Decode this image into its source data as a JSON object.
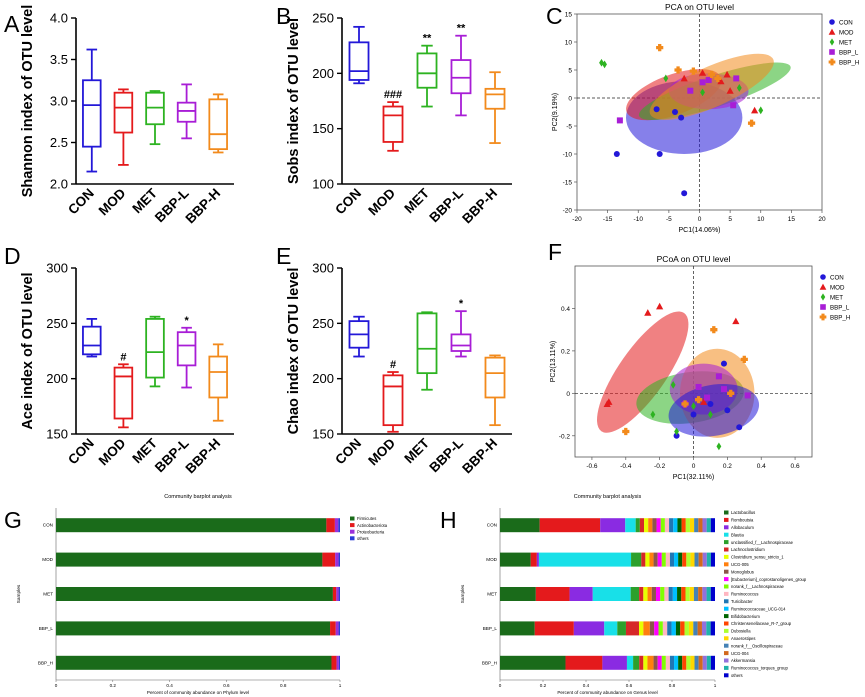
{
  "panel_labels": [
    "A",
    "B",
    "C",
    "D",
    "E",
    "F",
    "G",
    "H"
  ],
  "group_colors": {
    "CON": "#2318d8",
    "MOD": "#e41a1c",
    "MET": "#2db321",
    "BBP-L": "#a81dd6",
    "BBP-H": "#f28a1c"
  },
  "chart_data": [
    {
      "id": "A",
      "type": "box",
      "ylabel": "Shannon index of OTU level",
      "ylim": [
        2.0,
        4.0
      ],
      "yticks": [
        2.0,
        2.5,
        3.0,
        3.5,
        4.0
      ],
      "tick_fmt": 1,
      "categories": [
        "CON",
        "MOD",
        "MET",
        "BBP-L",
        "BBP-H"
      ],
      "boxes": [
        {
          "min": 2.15,
          "q1": 2.45,
          "median": 2.95,
          "q3": 3.25,
          "max": 3.62,
          "sig": ""
        },
        {
          "min": 2.23,
          "q1": 2.62,
          "median": 2.92,
          "q3": 3.1,
          "max": 3.14,
          "sig": ""
        },
        {
          "min": 2.48,
          "q1": 2.72,
          "median": 2.92,
          "q3": 3.1,
          "max": 3.12,
          "sig": ""
        },
        {
          "min": 2.55,
          "q1": 2.75,
          "median": 2.88,
          "q3": 2.98,
          "max": 3.2,
          "sig": ""
        },
        {
          "min": 2.38,
          "q1": 2.42,
          "median": 2.6,
          "q3": 3.02,
          "max": 3.08,
          "sig": ""
        }
      ]
    },
    {
      "id": "B",
      "type": "box",
      "ylabel": "Sobs index of OTU level",
      "ylim": [
        100,
        250
      ],
      "yticks": [
        100,
        150,
        200,
        250
      ],
      "tick_fmt": 0,
      "categories": [
        "CON",
        "MOD",
        "MET",
        "BBP-L",
        "BBP-H"
      ],
      "boxes": [
        {
          "min": 191,
          "q1": 194,
          "median": 202,
          "q3": 228,
          "max": 242,
          "sig": ""
        },
        {
          "min": 130,
          "q1": 138,
          "median": 162,
          "q3": 170,
          "max": 174,
          "sig": "###"
        },
        {
          "min": 170,
          "q1": 187,
          "median": 200,
          "q3": 218,
          "max": 225,
          "sig": "**"
        },
        {
          "min": 162,
          "q1": 182,
          "median": 196,
          "q3": 212,
          "max": 234,
          "sig": "**"
        },
        {
          "min": 137,
          "q1": 168,
          "median": 181,
          "q3": 186,
          "max": 201,
          "sig": ""
        }
      ]
    },
    {
      "id": "D",
      "type": "box",
      "ylabel": "Ace index of OTU level",
      "ylim": [
        150,
        300
      ],
      "yticks": [
        150,
        200,
        250,
        300
      ],
      "tick_fmt": 0,
      "categories": [
        "CON",
        "MOD",
        "MET",
        "BBP-L",
        "BBP-H"
      ],
      "boxes": [
        {
          "min": 220,
          "q1": 222,
          "median": 230,
          "q3": 247,
          "max": 254,
          "sig": ""
        },
        {
          "min": 156,
          "q1": 164,
          "median": 202,
          "q3": 210,
          "max": 213,
          "sig": "#"
        },
        {
          "min": 193,
          "q1": 201,
          "median": 224,
          "q3": 254,
          "max": 256,
          "sig": ""
        },
        {
          "min": 192,
          "q1": 212,
          "median": 230,
          "q3": 242,
          "max": 246,
          "sig": "*"
        },
        {
          "min": 162,
          "q1": 183,
          "median": 206,
          "q3": 220,
          "max": 231,
          "sig": ""
        }
      ]
    },
    {
      "id": "E",
      "type": "box",
      "ylabel": "Chao index of OTU level",
      "ylim": [
        150,
        300
      ],
      "yticks": [
        150,
        200,
        250,
        300
      ],
      "tick_fmt": 0,
      "categories": [
        "CON",
        "MOD",
        "MET",
        "BBP-L",
        "BBP-H"
      ],
      "boxes": [
        {
          "min": 220,
          "q1": 228,
          "median": 240,
          "q3": 252,
          "max": 256,
          "sig": ""
        },
        {
          "min": 152,
          "q1": 158,
          "median": 193,
          "q3": 203,
          "max": 206,
          "sig": "#"
        },
        {
          "min": 190,
          "q1": 205,
          "median": 227,
          "q3": 259,
          "max": 260,
          "sig": ""
        },
        {
          "min": 220,
          "q1": 225,
          "median": 230,
          "q3": 240,
          "max": 261,
          "sig": "*"
        },
        {
          "min": 158,
          "q1": 183,
          "median": 205,
          "q3": 219,
          "max": 221,
          "sig": ""
        }
      ]
    },
    {
      "id": "C",
      "type": "scatter",
      "title": "PCA on OTU level",
      "xlabel": "PC1(14.06%)",
      "ylabel": "PC2(9.19%)",
      "xlim": [
        -20,
        20
      ],
      "ylim": [
        -20,
        15
      ],
      "xticks": [
        -20,
        -15,
        -10,
        -5,
        0,
        5,
        10,
        15,
        20
      ],
      "yticks": [
        -20,
        -15,
        -10,
        -5,
        0,
        5,
        10,
        15
      ],
      "legend": [
        "CON",
        "MOD",
        "MET",
        "BBP_L",
        "BBP_H"
      ],
      "ellipses": [
        {
          "group": "CON",
          "cx": -2.5,
          "cy": -3.5,
          "rx": 9.5,
          "ry": 6.5,
          "angle": 0
        },
        {
          "group": "MOD",
          "cx": -4.2,
          "cy": 0.6,
          "rx": 8.2,
          "ry": 3.6,
          "angle": -20
        },
        {
          "group": "MET",
          "cx": 2.5,
          "cy": 1.2,
          "rx": 13,
          "ry": 2.8,
          "angle": -18
        },
        {
          "group": "BBP_L",
          "cx": 1.5,
          "cy": 1.2,
          "rx": 6.5,
          "ry": 3.2,
          "angle": 0
        },
        {
          "group": "BBP_H",
          "cx": 2.0,
          "cy": 2.0,
          "rx": 11,
          "ry": 3.6,
          "angle": -24
        }
      ],
      "points": [
        {
          "group": "CON",
          "x": -13.5,
          "y": -10
        },
        {
          "group": "CON",
          "x": -6.5,
          "y": -10
        },
        {
          "group": "CON",
          "x": -2.5,
          "y": -17
        },
        {
          "group": "CON",
          "x": -4,
          "y": -2.5
        },
        {
          "group": "CON",
          "x": -7,
          "y": -2
        },
        {
          "group": "CON",
          "x": -3,
          "y": -3.5
        },
        {
          "group": "MOD",
          "x": -2.5,
          "y": 3.5
        },
        {
          "group": "MOD",
          "x": 0.5,
          "y": 4.5
        },
        {
          "group": "MOD",
          "x": 3.5,
          "y": 3
        },
        {
          "group": "MOD",
          "x": 4.5,
          "y": 4.2
        },
        {
          "group": "MOD",
          "x": 9,
          "y": -2.2
        },
        {
          "group": "MOD",
          "x": 5,
          "y": 1.3
        },
        {
          "group": "MET",
          "x": -15.5,
          "y": 6
        },
        {
          "group": "MET",
          "x": -16,
          "y": 6.3
        },
        {
          "group": "MET",
          "x": -5.5,
          "y": 3.5
        },
        {
          "group": "MET",
          "x": 0.5,
          "y": 1
        },
        {
          "group": "MET",
          "x": 6.5,
          "y": 1.8
        },
        {
          "group": "MET",
          "x": 10,
          "y": -2.2
        },
        {
          "group": "BBP_L",
          "x": -13,
          "y": -4
        },
        {
          "group": "BBP_L",
          "x": -1.5,
          "y": 1.3
        },
        {
          "group": "BBP_L",
          "x": 0.5,
          "y": 2.8
        },
        {
          "group": "BBP_L",
          "x": 6,
          "y": 3.5
        },
        {
          "group": "BBP_L",
          "x": 5.5,
          "y": -1.3
        },
        {
          "group": "BBP_L",
          "x": 1.5,
          "y": 3.2
        },
        {
          "group": "BBP_H",
          "x": -6.5,
          "y": 9
        },
        {
          "group": "BBP_H",
          "x": -1,
          "y": 4.8
        },
        {
          "group": "BBP_H",
          "x": 3,
          "y": 3.5
        },
        {
          "group": "BBP_H",
          "x": 8.5,
          "y": -4.5
        },
        {
          "group": "BBP_H",
          "x": 2,
          "y": 4.2
        },
        {
          "group": "BBP_H",
          "x": -3.5,
          "y": 5
        }
      ]
    },
    {
      "id": "F",
      "type": "scatter",
      "title": "PCoA on OTU level",
      "xlabel": "PC1(32.11%)",
      "ylabel": "PC2(13.11%)",
      "xlim": [
        -0.7,
        0.7
      ],
      "ylim": [
        -0.3,
        0.6
      ],
      "xticks": [
        -0.6,
        -0.4,
        -0.2,
        0,
        0.2,
        0.4,
        0.6
      ],
      "yticks": [
        -0.2,
        0,
        0.2,
        0.4
      ],
      "legend": [
        "CON",
        "MOD",
        "MET",
        "BBP_L",
        "BBP_H"
      ],
      "ellipses": [
        {
          "group": "MOD",
          "cx": -0.3,
          "cy": 0.1,
          "rx": 0.14,
          "ry": 0.34,
          "angle": 35
        },
        {
          "group": "MET",
          "cx": -0.02,
          "cy": -0.02,
          "rx": 0.32,
          "ry": 0.12,
          "angle": -8
        },
        {
          "group": "BBP_H",
          "cx": 0.14,
          "cy": 0.0,
          "rx": 0.22,
          "ry": 0.21,
          "angle": 0
        },
        {
          "group": "BBP_L",
          "cx": 0.06,
          "cy": 0.02,
          "rx": 0.2,
          "ry": 0.12,
          "angle": 0
        },
        {
          "group": "CON",
          "cx": 0.12,
          "cy": -0.08,
          "rx": 0.27,
          "ry": 0.12,
          "angle": -10
        }
      ],
      "points": [
        {
          "group": "CON",
          "x": 0.1,
          "y": -0.05
        },
        {
          "group": "CON",
          "x": 0.2,
          "y": -0.08
        },
        {
          "group": "CON",
          "x": 0.27,
          "y": -0.16
        },
        {
          "group": "CON",
          "x": -0.1,
          "y": -0.2
        },
        {
          "group": "CON",
          "x": 0.0,
          "y": -0.1
        },
        {
          "group": "CON",
          "x": 0.18,
          "y": 0.14
        },
        {
          "group": "MOD",
          "x": -0.2,
          "y": 0.41
        },
        {
          "group": "MOD",
          "x": -0.27,
          "y": 0.38
        },
        {
          "group": "MOD",
          "x": -0.5,
          "y": -0.04
        },
        {
          "group": "MOD",
          "x": -0.51,
          "y": -0.05
        },
        {
          "group": "MOD",
          "x": 0.25,
          "y": 0.34
        },
        {
          "group": "MOD",
          "x": 0.06,
          "y": -0.04
        },
        {
          "group": "MET",
          "x": -0.24,
          "y": -0.1
        },
        {
          "group": "MET",
          "x": -0.1,
          "y": -0.18
        },
        {
          "group": "MET",
          "x": -0.12,
          "y": 0.04
        },
        {
          "group": "MET",
          "x": 0.0,
          "y": -0.06
        },
        {
          "group": "MET",
          "x": 0.1,
          "y": -0.1
        },
        {
          "group": "MET",
          "x": 0.15,
          "y": -0.25
        },
        {
          "group": "BBP_L",
          "x": -0.05,
          "y": -0.05
        },
        {
          "group": "BBP_L",
          "x": 0.03,
          "y": 0.03
        },
        {
          "group": "BBP_L",
          "x": 0.15,
          "y": 0.08
        },
        {
          "group": "BBP_L",
          "x": 0.18,
          "y": 0.02
        },
        {
          "group": "BBP_L",
          "x": 0.32,
          "y": -0.01
        },
        {
          "group": "BBP_L",
          "x": 0.08,
          "y": -0.02
        },
        {
          "group": "BBP_H",
          "x": -0.4,
          "y": -0.18
        },
        {
          "group": "BBP_H",
          "x": 0.12,
          "y": 0.3
        },
        {
          "group": "BBP_H",
          "x": 0.3,
          "y": 0.16
        },
        {
          "group": "BBP_H",
          "x": 0.03,
          "y": -0.03
        },
        {
          "group": "BBP_H",
          "x": -0.05,
          "y": -0.05
        },
        {
          "group": "BBP_H",
          "x": 0.22,
          "y": 0.0
        }
      ]
    },
    {
      "id": "G",
      "type": "bar",
      "orientation": "horizontal",
      "stacked": true,
      "title": "Community barplot analysis",
      "xlabel": "Percent of community abundance on Phylum level",
      "ylabel": "Samples",
      "xticks": [
        0,
        0.2,
        0.4,
        0.6,
        0.8,
        1
      ],
      "categories": [
        "CON",
        "MOD",
        "MET",
        "BBP_L",
        "BBP_H"
      ],
      "series": [
        {
          "name": "Firmicutes",
          "color": "#1a6b1a",
          "values": [
            0.952,
            0.938,
            0.975,
            0.965,
            0.97
          ]
        },
        {
          "name": "Actinobacteriota",
          "color": "#e41a1c",
          "values": [
            0.03,
            0.045,
            0.012,
            0.02,
            0.018
          ]
        },
        {
          "name": "Proteobacteria",
          "color": "#9b30d9",
          "values": [
            0.012,
            0.012,
            0.008,
            0.01,
            0.008
          ]
        },
        {
          "name": "others",
          "color": "#2b3bd6",
          "values": [
            0.006,
            0.005,
            0.005,
            0.005,
            0.004
          ]
        }
      ]
    },
    {
      "id": "H",
      "type": "bar",
      "orientation": "horizontal",
      "stacked": true,
      "title": "Community barplot analysis",
      "xlabel": "Percent of community abundance on Genus level",
      "ylabel": "Samples",
      "xticks": [
        0,
        0.2,
        0.4,
        0.6,
        0.8,
        1
      ],
      "categories": [
        "CON",
        "MOD",
        "MET",
        "BBP_L",
        "BBP_H"
      ],
      "series": [
        {
          "name": "Lactobacillus",
          "color": "#1a6b1a",
          "values": [
            0.19,
            0.15,
            0.17,
            0.16,
            0.32
          ]
        },
        {
          "name": "Romboutsia",
          "color": "#e41a1c",
          "values": [
            0.29,
            0.03,
            0.16,
            0.18,
            0.18
          ]
        },
        {
          "name": "Allobaculum",
          "color": "#8a2be2",
          "values": [
            0.12,
            0.01,
            0.11,
            0.14,
            0.12
          ]
        },
        {
          "name": "Blautia",
          "color": "#18e0e8",
          "values": [
            0.05,
            0.45,
            0.18,
            0.06,
            0.03
          ]
        },
        {
          "name": "unclassified_f__Lachnospiraceae",
          "color": "#2ca02c",
          "values": [
            0.02,
            0.05,
            0.04,
            0.04,
            0.03
          ]
        },
        {
          "name": "Lachnoclostridium",
          "color": "#d62728",
          "values": [
            0.02,
            0.02,
            0.02,
            0.06,
            0.02
          ]
        },
        {
          "name": "Clostridium_sensu_stricto_1",
          "color": "#e7ff00",
          "values": [
            0.02,
            0.02,
            0.02,
            0.02,
            0.02
          ]
        },
        {
          "name": "UCG-005",
          "color": "#ff7f0e",
          "values": [
            0.02,
            0.02,
            0.02,
            0.03,
            0.03
          ]
        },
        {
          "name": "Monoglobus",
          "color": "#8c564b",
          "values": [
            0.02,
            0.02,
            0.02,
            0.02,
            0.02
          ]
        },
        {
          "name": "[Eubacterium]_coprostanoligenes_group",
          "color": "#ff00ff",
          "values": [
            0.02,
            0.02,
            0.02,
            0.02,
            0.02
          ]
        },
        {
          "name": "norank_f__Lachnospiraceae",
          "color": "#7fff00",
          "values": [
            0.02,
            0.02,
            0.02,
            0.02,
            0.02
          ]
        },
        {
          "name": "Ruminococcus",
          "color": "#ffb6c1",
          "values": [
            0.02,
            0.02,
            0.02,
            0.02,
            0.02
          ]
        },
        {
          "name": "Turicibacter",
          "color": "#1f77b4",
          "values": [
            0.02,
            0.02,
            0.02,
            0.02,
            0.02
          ]
        },
        {
          "name": "Ruminococcaceae_UCG-014",
          "color": "#00bfff",
          "values": [
            0.02,
            0.02,
            0.02,
            0.02,
            0.02
          ]
        },
        {
          "name": "Bifidobacterium",
          "color": "#006400",
          "values": [
            0.02,
            0.02,
            0.02,
            0.02,
            0.02
          ]
        },
        {
          "name": "Christensenellaceae_R-7_group",
          "color": "#ff4500",
          "values": [
            0.02,
            0.02,
            0.02,
            0.02,
            0.02
          ]
        },
        {
          "name": "Dubosiella",
          "color": "#adff2f",
          "values": [
            0.02,
            0.02,
            0.02,
            0.02,
            0.02
          ]
        },
        {
          "name": "Anaerostipes",
          "color": "#ffd700",
          "values": [
            0.02,
            0.02,
            0.02,
            0.02,
            0.02
          ]
        },
        {
          "name": "norank_f__Oscillospiraceae",
          "color": "#4682b4",
          "values": [
            0.02,
            0.02,
            0.02,
            0.02,
            0.02
          ]
        },
        {
          "name": "UCG-004",
          "color": "#d2691e",
          "values": [
            0.02,
            0.02,
            0.02,
            0.02,
            0.02
          ]
        },
        {
          "name": "Akkermansia",
          "color": "#9370db",
          "values": [
            0.02,
            0.02,
            0.02,
            0.02,
            0.02
          ]
        },
        {
          "name": "Ruminococcus_torques_group",
          "color": "#20b2aa",
          "values": [
            0.02,
            0.02,
            0.02,
            0.02,
            0.02
          ]
        },
        {
          "name": "others",
          "color": "#0000cd",
          "values": [
            0.02,
            0.02,
            0.02,
            0.02,
            0.02
          ]
        }
      ]
    }
  ]
}
